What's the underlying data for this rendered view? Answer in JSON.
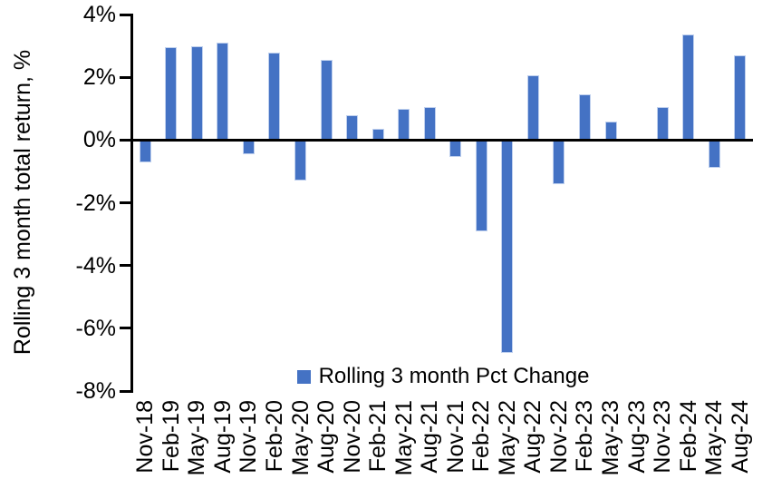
{
  "chart_data": {
    "type": "bar",
    "title": "",
    "xlabel": "",
    "ylabel": "Rolling 3 month total return, %",
    "categories": [
      "Nov-18",
      "Feb-19",
      "May-19",
      "Aug-19",
      "Nov-19",
      "Feb-20",
      "May-20",
      "Aug-20",
      "Nov-20",
      "Feb-21",
      "May-21",
      "Aug-21",
      "Nov-21",
      "Feb-22",
      "May-22",
      "Aug-22",
      "Nov-22",
      "Feb-23",
      "May-23",
      "Aug-23",
      "Nov-23",
      "Feb-24",
      "May-24",
      "Aug-24"
    ],
    "series": [
      {
        "name": "Rolling 3 month Pct Change",
        "values": [
          -0.7,
          2.95,
          3.0,
          3.1,
          -0.45,
          2.8,
          -1.3,
          2.55,
          0.8,
          0.35,
          1.0,
          1.05,
          -0.55,
          -2.9,
          -6.8,
          2.05,
          -1.4,
          1.45,
          0.6,
          0.0,
          1.05,
          3.35,
          -0.9,
          2.7
        ]
      }
    ],
    "ylim": [
      -8,
      4
    ],
    "ytick_step": 2,
    "ytick_suffix": "%",
    "grid": false,
    "legend_position": "bottom",
    "bar_color": "#4472C4",
    "bar_edge_color": "#bfd0ee",
    "axis_color": "#000000"
  }
}
